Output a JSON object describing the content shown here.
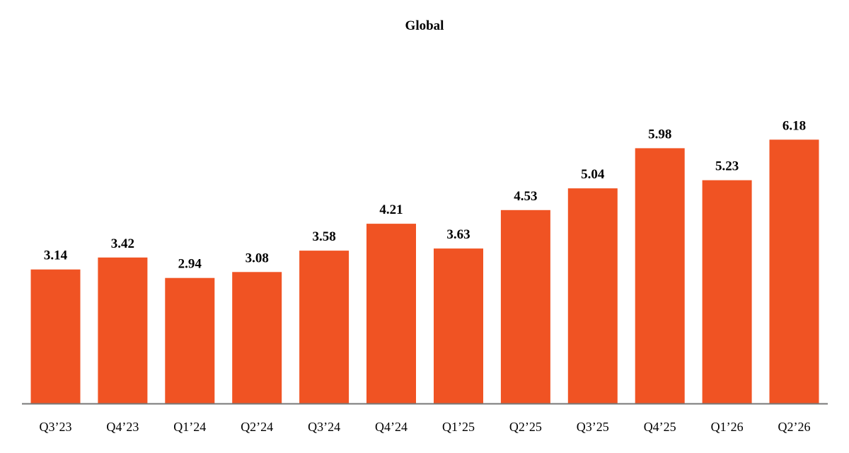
{
  "chart_data": {
    "type": "bar",
    "title": "Global",
    "categories": [
      "Q3’23",
      "Q4’23",
      "Q1’24",
      "Q2’24",
      "Q3’24",
      "Q4’24",
      "Q1’25",
      "Q2’25",
      "Q3’25",
      "Q4’25",
      "Q1’26",
      "Q2’26"
    ],
    "values": [
      3.14,
      3.42,
      2.94,
      3.08,
      3.58,
      4.21,
      3.63,
      4.53,
      5.04,
      5.98,
      5.23,
      6.18
    ],
    "value_labels": [
      "3.14",
      "3.42",
      "2.94",
      "3.08",
      "3.58",
      "4.21",
      "3.63",
      "4.53",
      "5.04",
      "5.98",
      "5.23",
      "6.18"
    ],
    "ylim": [
      0,
      7.2
    ],
    "grid": false,
    "legend": "none",
    "colors": {
      "bar": "#F05323",
      "axis": "#777777"
    }
  }
}
